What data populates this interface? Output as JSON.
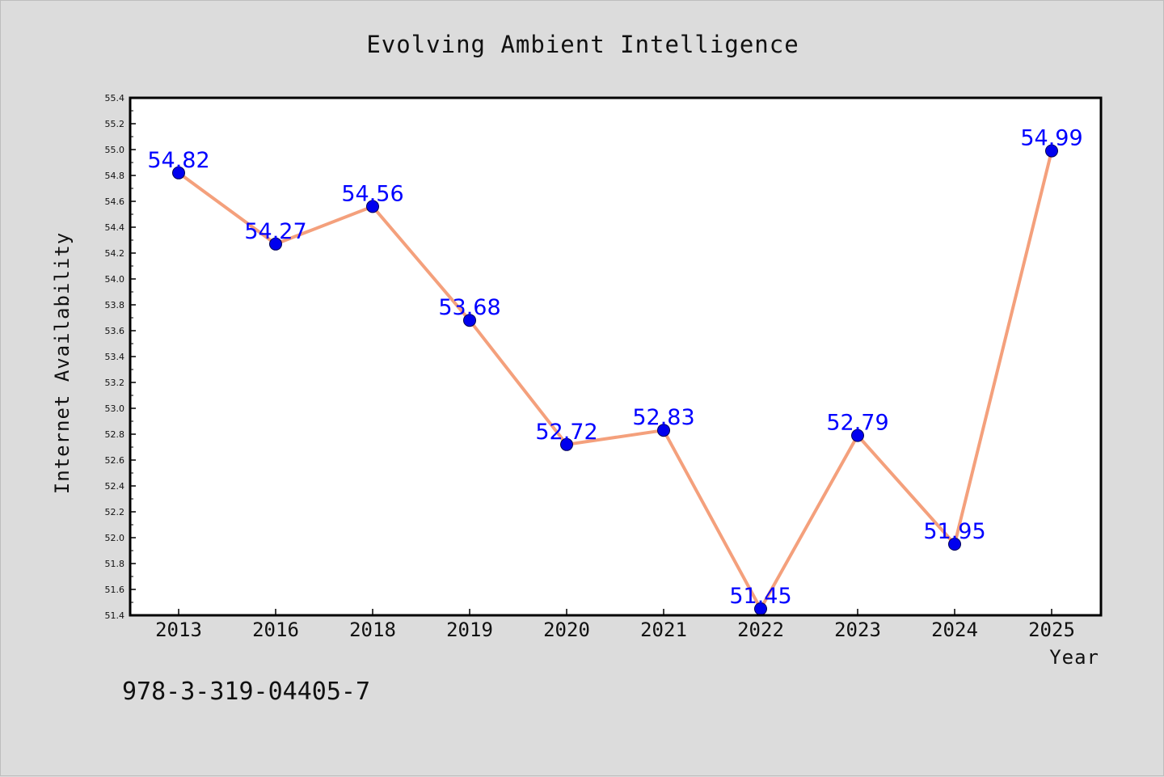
{
  "chart_data": {
    "type": "line",
    "title": "Evolving Ambient Intelligence",
    "xlabel": "Year",
    "ylabel": "Internet Availability",
    "categories": [
      "2013",
      "2016",
      "2018",
      "2019",
      "2020",
      "2021",
      "2022",
      "2023",
      "2024",
      "2025"
    ],
    "values": [
      54.82,
      54.27,
      54.56,
      53.68,
      52.72,
      52.83,
      51.45,
      52.79,
      51.95,
      54.99
    ],
    "data_labels": [
      "54.82",
      "54.27",
      "54.56",
      "53.68",
      "52.72",
      "52.83",
      "51.45",
      "52.79",
      "51.95",
      "54.99"
    ],
    "ylim": [
      51.4,
      55.4
    ],
    "yticks": [
      "51.4",
      "51.6",
      "51.8",
      "52.0",
      "52.2",
      "52.4",
      "52.6",
      "52.8",
      "53.0",
      "53.2",
      "53.4",
      "53.6",
      "53.8",
      "54.0",
      "54.2",
      "54.4",
      "54.6",
      "54.8",
      "55.0",
      "55.2",
      "55.4"
    ],
    "grid": false,
    "legend": "none",
    "colors": {
      "line": "#f4a07c",
      "marker": "#0000ee",
      "label": "#0000ff",
      "background": "#dcdcdc",
      "plot_background": "#ffffff"
    }
  },
  "footnote": "978-3-319-04405-7"
}
